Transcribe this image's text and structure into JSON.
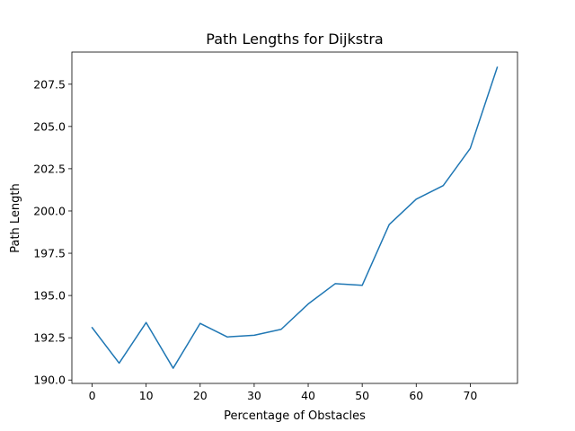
{
  "chart_data": {
    "type": "line",
    "title": "Path Lengths for Dijkstra",
    "xlabel": "Percentage of Obstacles",
    "ylabel": "Path Length",
    "xlim": [
      -3.75,
      78.75
    ],
    "ylim": [
      189.8,
      209.4
    ],
    "xticks": [
      0,
      10,
      20,
      30,
      40,
      50,
      60,
      70
    ],
    "xtick_labels": [
      "0",
      "10",
      "20",
      "30",
      "40",
      "50",
      "60",
      "70"
    ],
    "yticks": [
      190.0,
      192.5,
      195.0,
      197.5,
      200.0,
      202.5,
      205.0,
      207.5
    ],
    "ytick_labels": [
      "190.0",
      "192.5",
      "195.0",
      "197.5",
      "200.0",
      "202.5",
      "205.0",
      "207.5"
    ],
    "grid": false,
    "legend": "none",
    "series": [
      {
        "color": "#1f77b4",
        "x": [
          0,
          5,
          10,
          15,
          20,
          25,
          30,
          35,
          40,
          45,
          50,
          55,
          60,
          65,
          70,
          75
        ],
        "y": [
          193.1,
          191.0,
          193.4,
          190.7,
          193.35,
          192.55,
          192.65,
          193.0,
          194.5,
          195.7,
          195.6,
          199.2,
          200.7,
          201.5,
          203.7,
          208.5
        ]
      }
    ]
  }
}
